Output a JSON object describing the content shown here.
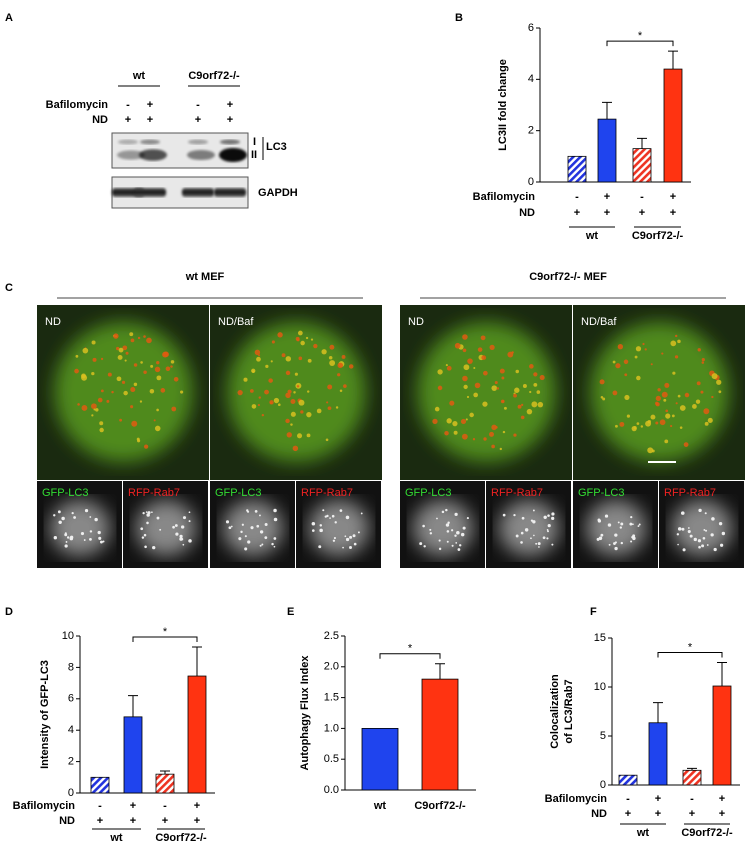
{
  "panel_labels": [
    "A",
    "B",
    "C",
    "D",
    "E",
    "F"
  ],
  "blot": {
    "groups": [
      "wt",
      "C9orf72-/-"
    ],
    "conditions": [
      {
        "label": "Bafilomycin",
        "marks": [
          "-",
          "+",
          "-",
          "+"
        ]
      },
      {
        "label": "ND",
        "marks": [
          "+",
          "+",
          "+",
          "+"
        ]
      }
    ],
    "bands": [
      "I",
      "II"
    ],
    "band_label": "LC3",
    "loading_label": "GAPDH"
  },
  "microscopy": {
    "groups": [
      {
        "title": "wt MEF",
        "panels": [
          "ND",
          "ND/Baf"
        ]
      },
      {
        "title": "C9orf72-/- MEF",
        "panels": [
          "ND",
          "ND/Baf"
        ]
      }
    ],
    "channels": [
      {
        "name": "GFP-LC3",
        "color": "#33dd33"
      },
      {
        "name": "RFP-Rab7",
        "color": "#ee2222"
      }
    ]
  },
  "chart_data": [
    {
      "type": "bar",
      "ylabel": [
        "LC3II fold change"
      ],
      "categories": [
        null,
        null,
        null,
        null
      ],
      "values": [
        1.0,
        2.45,
        1.3,
        4.4
      ],
      "errors": [
        0,
        0.65,
        0.4,
        0.7
      ],
      "colors": [
        "#2233dd",
        "#1f44ee",
        "#ee3322",
        "#ff3311"
      ],
      "hatch": [
        true,
        false,
        true,
        false
      ],
      "conditions": [
        {
          "label": "Bafilomycin",
          "marks": [
            "-",
            "+",
            "-",
            "+"
          ]
        },
        {
          "label": "ND",
          "marks": [
            "+",
            "+",
            "+",
            "+"
          ]
        }
      ],
      "groups": [
        "wt",
        "C9orf72-/-"
      ],
      "significance": {
        "label": "*",
        "between": [
          1,
          3
        ]
      },
      "ylim": [
        0,
        6
      ],
      "yticks": [
        0,
        2,
        4,
        6
      ]
    },
    {
      "type": "bar",
      "ylabel": [
        "Intensity of GFP-LC3"
      ],
      "categories": [
        null,
        null,
        null,
        null
      ],
      "values": [
        1.0,
        4.85,
        1.2,
        7.45
      ],
      "errors": [
        0,
        1.35,
        0.2,
        1.85
      ],
      "colors": [
        "#2233dd",
        "#1f44ee",
        "#ee3322",
        "#ff3311"
      ],
      "hatch": [
        true,
        false,
        true,
        false
      ],
      "conditions": [
        {
          "label": "Bafilomycin",
          "marks": [
            "-",
            "+",
            "-",
            "+"
          ]
        },
        {
          "label": "ND",
          "marks": [
            "+",
            "+",
            "+",
            "+"
          ]
        }
      ],
      "groups": [
        "wt",
        "C9orf72-/-"
      ],
      "significance": {
        "label": "*",
        "between": [
          1,
          3
        ]
      },
      "ylim": [
        0,
        10
      ],
      "yticks": [
        0,
        2,
        4,
        6,
        8,
        10
      ]
    },
    {
      "type": "bar",
      "ylabel": [
        "Autophagy Flux Index"
      ],
      "categories": [
        "wt",
        "C9orf72-/-"
      ],
      "values": [
        1.0,
        1.8
      ],
      "errors": [
        0,
        0.25
      ],
      "colors": [
        "#1f44ee",
        "#ff3311"
      ],
      "hatch": [
        false,
        false
      ],
      "significance": {
        "label": "*",
        "between": [
          0,
          1
        ]
      },
      "ylim": [
        0,
        2.5
      ],
      "yticks": [
        {
          "value": 0,
          "label": "0.0"
        },
        0.5,
        {
          "value": 1,
          "label": "1.0"
        },
        1.5,
        {
          "value": 2,
          "label": "2.0"
        },
        2.5
      ]
    },
    {
      "type": "bar",
      "ylabel": [
        "Colocalization",
        "of LC3/Rab7"
      ],
      "categories": [
        null,
        null,
        null,
        null
      ],
      "values": [
        1.0,
        6.35,
        1.5,
        10.1
      ],
      "errors": [
        0,
        2.05,
        0.2,
        2.4
      ],
      "colors": [
        "#2233dd",
        "#1f44ee",
        "#ee3322",
        "#ff3311"
      ],
      "hatch": [
        true,
        false,
        true,
        false
      ],
      "conditions": [
        {
          "label": "Bafilomycin",
          "marks": [
            "-",
            "+",
            "-",
            "+"
          ]
        },
        {
          "label": "ND",
          "marks": [
            "+",
            "+",
            "+",
            "+"
          ]
        }
      ],
      "groups": [
        "wt",
        "C9orf72-/-"
      ],
      "significance": {
        "label": "*",
        "between": [
          1,
          3
        ]
      },
      "ylim": [
        0,
        15
      ],
      "yticks": [
        0,
        5,
        10,
        15
      ]
    }
  ]
}
